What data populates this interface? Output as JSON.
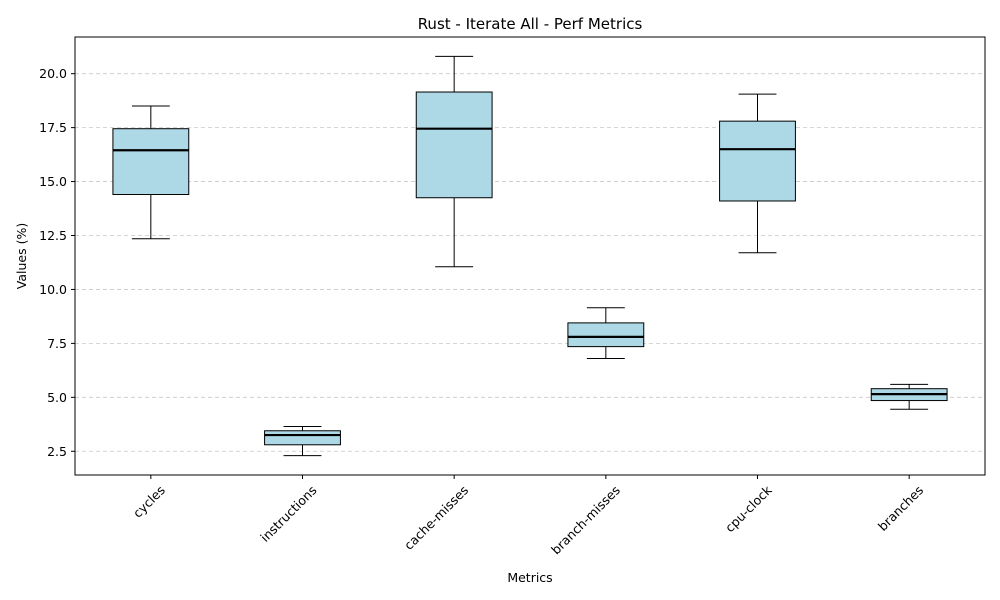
{
  "chart_data": {
    "type": "box",
    "title": "Rust - Iterate All - Perf Metrics",
    "xlabel": "Metrics",
    "ylabel": "Values (%)",
    "ylim": [
      1.4,
      21.7
    ],
    "yticks": [
      "2.5",
      "5.0",
      "7.5",
      "10.0",
      "12.5",
      "15.0",
      "17.5",
      "20.0"
    ],
    "grid": "y-dashed",
    "categories": [
      "cycles",
      "instructions",
      "cache-misses",
      "branch-misses",
      "cpu-clock",
      "branches"
    ],
    "boxes": [
      {
        "category": "cycles",
        "whisker_low": 12.35,
        "q1": 14.4,
        "median": 16.45,
        "q3": 17.45,
        "whisker_high": 18.5
      },
      {
        "category": "instructions",
        "whisker_low": 2.3,
        "q1": 2.8,
        "median": 3.25,
        "q3": 3.45,
        "whisker_high": 3.65
      },
      {
        "category": "cache-misses",
        "whisker_low": 11.05,
        "q1": 14.25,
        "median": 17.45,
        "q3": 19.15,
        "whisker_high": 20.8
      },
      {
        "category": "branch-misses",
        "whisker_low": 6.8,
        "q1": 7.35,
        "median": 7.8,
        "q3": 8.45,
        "whisker_high": 9.15
      },
      {
        "category": "cpu-clock",
        "whisker_low": 11.7,
        "q1": 14.1,
        "median": 16.5,
        "q3": 17.8,
        "whisker_high": 19.05
      },
      {
        "category": "branches",
        "whisker_low": 4.45,
        "q1": 4.85,
        "median": 5.15,
        "q3": 5.4,
        "whisker_high": 5.6
      }
    ],
    "box_color": "#add8e6",
    "edge_color": "#000000",
    "grid_color": "#c8c8c8"
  }
}
